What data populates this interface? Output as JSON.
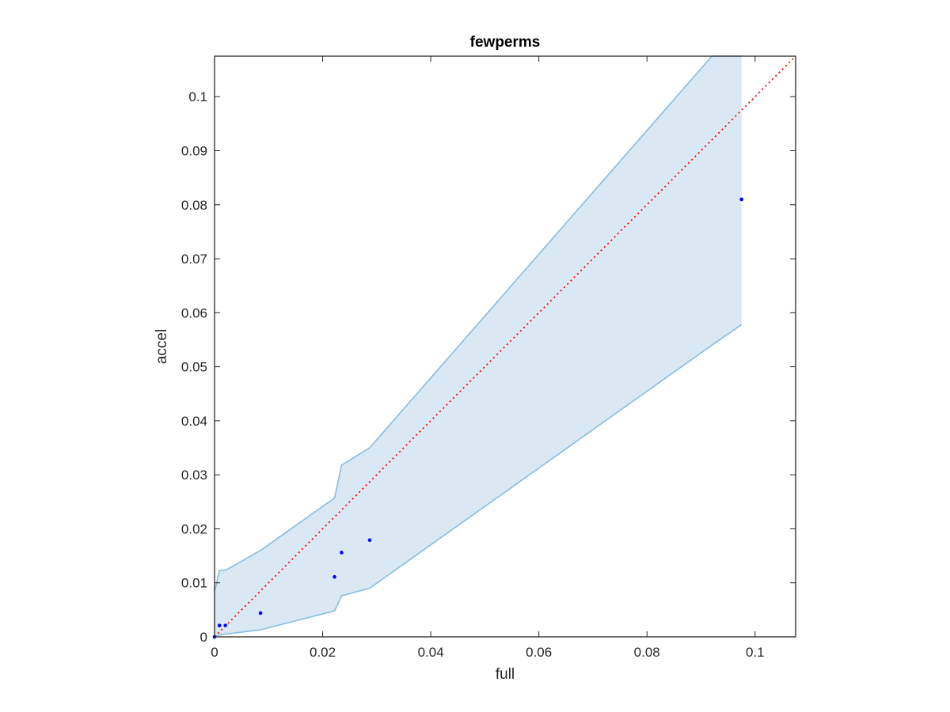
{
  "chart_data": {
    "type": "scatter",
    "title": "fewperms",
    "xlabel": "full",
    "ylabel": "accel",
    "xlim": [
      0,
      0.1075
    ],
    "ylim": [
      0,
      0.1075
    ],
    "xticks": [
      0,
      0.02,
      0.04,
      0.06,
      0.08,
      0.1
    ],
    "xtick_labels": [
      "0",
      "0.02",
      "0.04",
      "0.06",
      "0.08",
      "0.1"
    ],
    "yticks": [
      0,
      0.01,
      0.02,
      0.03,
      0.04,
      0.05,
      0.06,
      0.07,
      0.08,
      0.09,
      0.1
    ],
    "ytick_labels": [
      "0",
      "0.01",
      "0.02",
      "0.03",
      "0.04",
      "0.05",
      "0.06",
      "0.07",
      "0.08",
      "0.09",
      "0.1"
    ],
    "grid": false,
    "points": {
      "x": [
        0,
        0.0009,
        0.002,
        0.0085,
        0.0222,
        0.0235,
        0.0287,
        0.0975
      ],
      "y": [
        0,
        0.0021,
        0.0021,
        0.0044,
        0.0111,
        0.0156,
        0.0179,
        0.081
      ]
    },
    "band": {
      "x": [
        0,
        0.0003,
        0.0009,
        0.002,
        0.0085,
        0.0222,
        0.0235,
        0.0287,
        0.092,
        0.0975
      ],
      "upper": [
        0.0085,
        0.0095,
        0.0123,
        0.0123,
        0.016,
        0.0257,
        0.0318,
        0.035,
        0.1075,
        0.1075
      ],
      "lower": [
        0,
        0.0002,
        0.0003,
        0.0005,
        0.0013,
        0.0048,
        0.0076,
        0.009,
        0.054,
        0.0578
      ]
    },
    "reference_line": {
      "x": [
        0,
        0.1075
      ],
      "y": [
        0,
        0.1075
      ]
    },
    "colors": {
      "points": "#0000ff",
      "band_fill": "#dae8f4",
      "band_edge": "#86bde1",
      "reference": "#ff0000",
      "axes": "#262626"
    }
  }
}
